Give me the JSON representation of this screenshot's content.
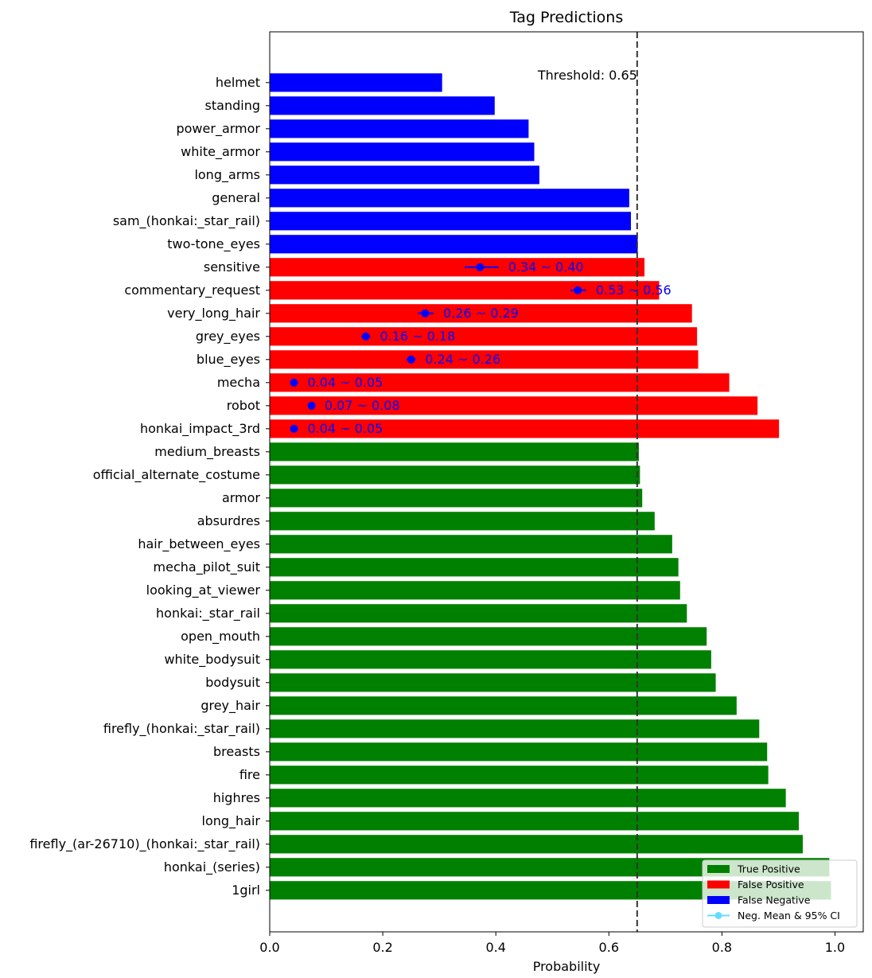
{
  "chart_data": {
    "type": "bar",
    "orientation": "horizontal",
    "title": "Tag Predictions",
    "xlabel": "Probability",
    "ylabel": "",
    "xlim": [
      0.0,
      1.05
    ],
    "x_ticks": [
      0.0,
      0.2,
      0.4,
      0.6,
      0.8,
      1.0
    ],
    "x_tick_labels": [
      "0.0",
      "0.2",
      "0.4",
      "0.6",
      "0.8",
      "1.0"
    ],
    "threshold": {
      "value": 0.65,
      "label": "Threshold: 0.65"
    },
    "categories": [
      "helmet",
      "standing",
      "power_armor",
      "white_armor",
      "long_arms",
      "general",
      "sam_(honkai:_star_rail)",
      "two-tone_eyes",
      "sensitive",
      "commentary_request",
      "very_long_hair",
      "grey_eyes",
      "blue_eyes",
      "mecha",
      "robot",
      "honkai_impact_3rd",
      "medium_breasts",
      "official_alternate_costume",
      "armor",
      "absurdres",
      "hair_between_eyes",
      "mecha_pilot_suit",
      "looking_at_viewer",
      "honkai:_star_rail",
      "open_mouth",
      "white_bodysuit",
      "bodysuit",
      "grey_hair",
      "firefly_(honkai:_star_rail)",
      "breasts",
      "fire",
      "highres",
      "long_hair",
      "firefly_(ar-26710)_(honkai:_star_rail)",
      "honkai_(series)",
      "1girl"
    ],
    "values": [
      0.305,
      0.398,
      0.458,
      0.468,
      0.477,
      0.636,
      0.639,
      0.651,
      0.663,
      0.689,
      0.747,
      0.756,
      0.758,
      0.813,
      0.863,
      0.901,
      0.653,
      0.655,
      0.659,
      0.681,
      0.712,
      0.723,
      0.726,
      0.738,
      0.773,
      0.781,
      0.789,
      0.826,
      0.866,
      0.88,
      0.882,
      0.913,
      0.936,
      0.943,
      0.99,
      0.993
    ],
    "classes": [
      "fn",
      "fn",
      "fn",
      "fn",
      "fn",
      "fn",
      "fn",
      "fn",
      "fp",
      "fp",
      "fp",
      "fp",
      "fp",
      "fp",
      "fp",
      "fp",
      "tp",
      "tp",
      "tp",
      "tp",
      "tp",
      "tp",
      "tp",
      "tp",
      "tp",
      "tp",
      "tp",
      "tp",
      "tp",
      "tp",
      "tp",
      "tp",
      "tp",
      "tp",
      "tp",
      "tp"
    ],
    "neg_mean_ci": [
      {
        "category": "sensitive",
        "mean": 0.372,
        "ci_low": 0.345,
        "ci_high": 0.405,
        "label": "0.34 ~ 0.40"
      },
      {
        "category": "commentary_request",
        "mean": 0.545,
        "ci_low": 0.532,
        "ci_high": 0.56,
        "label": "0.53 ~ 0.56"
      },
      {
        "category": "very_long_hair",
        "mean": 0.275,
        "ci_low": 0.262,
        "ci_high": 0.29,
        "label": "0.26 ~ 0.29"
      },
      {
        "category": "grey_eyes",
        "mean": 0.17,
        "ci_low": 0.162,
        "ci_high": 0.178,
        "label": "0.16 ~ 0.18"
      },
      {
        "category": "blue_eyes",
        "mean": 0.25,
        "ci_low": 0.242,
        "ci_high": 0.258,
        "label": "0.24 ~ 0.26"
      },
      {
        "category": "mecha",
        "mean": 0.043,
        "ci_low": 0.04,
        "ci_high": 0.05,
        "label": "0.04 ~ 0.05"
      },
      {
        "category": "robot",
        "mean": 0.074,
        "ci_low": 0.07,
        "ci_high": 0.08,
        "label": "0.07 ~ 0.08"
      },
      {
        "category": "honkai_impact_3rd",
        "mean": 0.043,
        "ci_low": 0.04,
        "ci_high": 0.05,
        "label": "0.04 ~ 0.05"
      }
    ],
    "legend": {
      "position": "lower-right",
      "entries": [
        {
          "key": "tp",
          "label": "True Positive"
        },
        {
          "key": "fp",
          "label": "False Positive"
        },
        {
          "key": "fn",
          "label": "False Negative"
        },
        {
          "key": "ci",
          "label": "Neg. Mean & 95% CI"
        }
      ]
    },
    "colors": {
      "tp": "#008000",
      "fp": "#ff0000",
      "fn": "#0000ff",
      "ci_marker": "#0000ff",
      "ci_text": "#0000ff",
      "legend_ci": "#66ddff",
      "threshold": "#333333"
    }
  }
}
